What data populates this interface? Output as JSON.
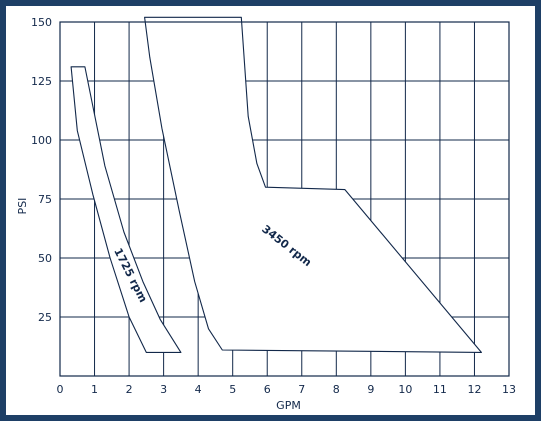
{
  "chart_data": {
    "type": "area",
    "title": "",
    "xlabel": "GPM",
    "ylabel": "PSI",
    "xlim": [
      0,
      13
    ],
    "ylim": [
      0,
      150
    ],
    "x_ticks": [
      0,
      1,
      2,
      3,
      4,
      5,
      6,
      7,
      8,
      9,
      10,
      11,
      12,
      13
    ],
    "y_ticks": [
      25,
      50,
      75,
      100,
      125,
      150
    ],
    "grid": true,
    "series": [
      {
        "name": "1725 rpm",
        "color": "#12284a",
        "outline": [
          [
            0.32,
            131
          ],
          [
            0.72,
            131
          ],
          [
            1.3,
            89
          ],
          [
            1.85,
            61
          ],
          [
            2.4,
            40
          ],
          [
            2.9,
            24
          ],
          [
            3.5,
            10
          ],
          [
            2.5,
            10
          ],
          [
            2.0,
            25
          ],
          [
            1.45,
            50
          ],
          [
            0.95,
            77
          ],
          [
            0.5,
            104
          ],
          [
            0.32,
            131
          ]
        ]
      },
      {
        "name": "3450 rpm",
        "color": "#12284a",
        "outline": [
          [
            2.45,
            152
          ],
          [
            5.25,
            152
          ],
          [
            5.45,
            110
          ],
          [
            5.7,
            90
          ],
          [
            5.95,
            80
          ],
          [
            8.25,
            79
          ],
          [
            12.2,
            10
          ],
          [
            4.7,
            11
          ],
          [
            4.3,
            20
          ],
          [
            3.9,
            40
          ],
          [
            3.45,
            70
          ],
          [
            2.95,
            105
          ],
          [
            2.6,
            135
          ],
          [
            2.45,
            152
          ]
        ]
      }
    ]
  }
}
